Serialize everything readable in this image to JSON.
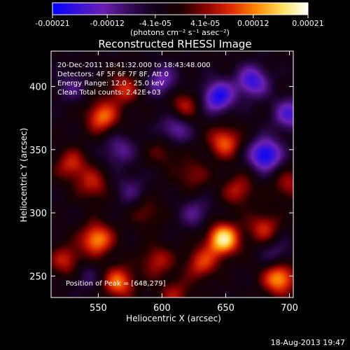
{
  "colorbar": {
    "tick_values": [
      -0.00021,
      -0.00012,
      -4.1e-05,
      4.1e-05,
      0.00012,
      0.00021
    ],
    "tick_labels": [
      "-0.00021",
      "-0.00012",
      "-4.1e-05",
      "4.1e-05",
      "0.00012",
      "0.00021"
    ],
    "unit_label": "(photons cm⁻² s⁻¹ asec⁻²)",
    "colors": {
      "negative_stops": [
        "#0000ff",
        "#3a12d8",
        "#6a1fb0",
        "#350b5a",
        "#120018"
      ],
      "positive_stops": [
        "#1a0000",
        "#8a0000",
        "#e02a00",
        "#ff8a00",
        "#ffe060",
        "#ffffff"
      ]
    }
  },
  "chart_data": {
    "type": "heatmap",
    "title": "Reconstructed RHESSI Image",
    "xlabel": "Heliocentric X (arcsec)",
    "ylabel": "Heliocentric Y (arcsec)",
    "xlim": [
      513,
      703
    ],
    "ylim": [
      233,
      428
    ],
    "xticks": [
      550,
      600,
      650,
      700
    ],
    "yticks": [
      250,
      300,
      350,
      400
    ],
    "value_range": [
      -0.00021,
      0.00021
    ],
    "peak": [
      648,
      279
    ],
    "info_lines": [
      "20-Dec-2011 18:41:32.000 to 18:43:48.000",
      "Detectors: 4F 5F 6F 7F 8F, Att 0",
      "Energy Range: 12.0 - 25.0 keV",
      "Clean     Total counts: 2.42E+03"
    ],
    "peak_label": "Position of Peak = [648,279]",
    "hot_spots": [
      {
        "x": 549,
        "y": 279,
        "v": 0.00016
      },
      {
        "x": 566,
        "y": 245,
        "v": 0.00014
      },
      {
        "x": 596,
        "y": 262,
        "v": 9e-05
      },
      {
        "x": 525,
        "y": 262,
        "v": 0.0001
      },
      {
        "x": 648,
        "y": 279,
        "v": 0.00021
      },
      {
        "x": 631,
        "y": 260,
        "v": 0.00011
      },
      {
        "x": 660,
        "y": 318,
        "v": 9e-05
      },
      {
        "x": 692,
        "y": 248,
        "v": 0.00017
      },
      {
        "x": 680,
        "y": 288,
        "v": 0.0001
      },
      {
        "x": 553,
        "y": 376,
        "v": 0.00014
      },
      {
        "x": 570,
        "y": 398,
        "v": 0.0001
      },
      {
        "x": 529,
        "y": 338,
        "v": 0.0001
      },
      {
        "x": 546,
        "y": 322,
        "v": 9e-05
      },
      {
        "x": 617,
        "y": 385,
        "v": 9e-05
      },
      {
        "x": 649,
        "y": 356,
        "v": 0.00013
      },
      {
        "x": 624,
        "y": 330,
        "v": 7e-05
      },
      {
        "x": 700,
        "y": 322,
        "v": 8e-05
      },
      {
        "x": 588,
        "y": 300,
        "v": 6e-05
      },
      {
        "x": 602,
        "y": 349,
        "v": 6e-05
      },
      {
        "x": 610,
        "y": 235,
        "v": 8e-05
      }
    ],
    "cold_spots": [
      {
        "x": 681,
        "y": 346,
        "v": -0.00018
      },
      {
        "x": 644,
        "y": 392,
        "v": -0.00016
      },
      {
        "x": 600,
        "y": 404,
        "v": -0.0001
      },
      {
        "x": 671,
        "y": 404,
        "v": -0.00014
      },
      {
        "x": 700,
        "y": 378,
        "v": -0.00012
      },
      {
        "x": 566,
        "y": 350,
        "v": -8e-05
      },
      {
        "x": 610,
        "y": 366,
        "v": -0.0001
      },
      {
        "x": 575,
        "y": 318,
        "v": -6e-05
      },
      {
        "x": 529,
        "y": 400,
        "v": -6e-05
      },
      {
        "x": 626,
        "y": 300,
        "v": -7e-05
      },
      {
        "x": 690,
        "y": 268,
        "v": -6e-05
      },
      {
        "x": 540,
        "y": 250,
        "v": -5e-05
      }
    ]
  },
  "footer": {
    "timestamp": "18-Aug-2013 19:47"
  }
}
